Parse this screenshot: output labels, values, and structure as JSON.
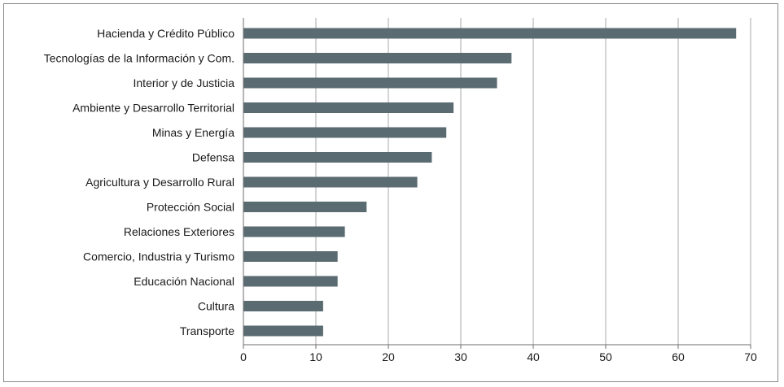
{
  "chart_data": {
    "type": "bar",
    "orientation": "horizontal",
    "categories": [
      "Hacienda y Crédito Público",
      "Tecnologías de la Información y Com.",
      "Interior y de Justicia",
      "Ambiente y Desarrollo Territorial",
      "Minas y Energía",
      "Defensa",
      "Agricultura y Desarrollo Rural",
      "Protección Social",
      "Relaciones Exteriores",
      "Comercio, Industria y Turismo",
      "Educación Nacional",
      "Cultura",
      "Transporte"
    ],
    "values": [
      68,
      37,
      35,
      29,
      28,
      26,
      24,
      17,
      14,
      13,
      13,
      11,
      11
    ],
    "xlim": [
      0,
      70
    ],
    "xticks": [
      "0",
      "10",
      "20",
      "30",
      "40",
      "50",
      "60",
      "70"
    ],
    "grid": "vertical",
    "bar_color": "#5b6b72",
    "grid_color": "#a8a8a8",
    "axis_color": "#6e6e6e"
  }
}
